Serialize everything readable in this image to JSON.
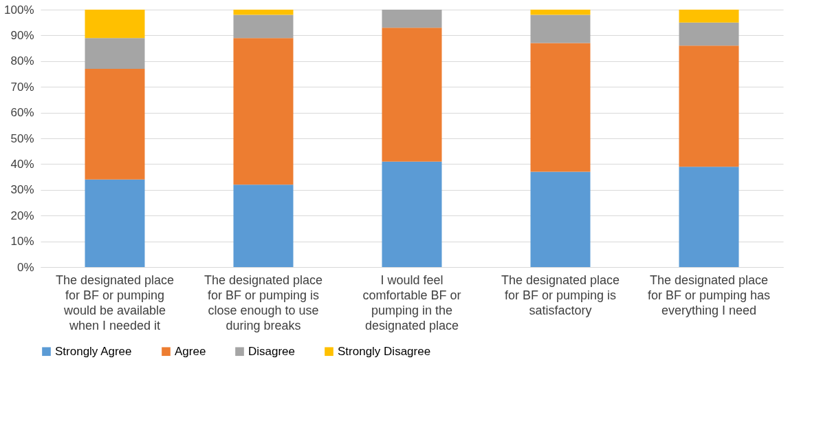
{
  "chart_data": {
    "type": "bar",
    "stacked": true,
    "categories": [
      "The designated place for BF or pumping would be available when I needed it",
      "The designated place for BF or pumping is close enough to use during breaks",
      "I would feel comfortable BF or pumping in the designated place",
      "The designated place for BF or pumping is satisfactory",
      "The designated place for BF or pumping has everything I need"
    ],
    "series": [
      {
        "name": "Strongly Agree",
        "color": "#5b9bd5",
        "values": [
          34,
          32,
          41,
          37,
          39
        ]
      },
      {
        "name": "Agree",
        "color": "#ed7d31",
        "values": [
          43,
          57,
          52,
          50,
          47
        ]
      },
      {
        "name": "Disagree",
        "color": "#a5a5a5",
        "values": [
          12,
          9,
          7,
          11,
          9
        ]
      },
      {
        "name": "Strongly Disagree",
        "color": "#ffc000",
        "values": [
          11,
          2,
          0,
          2,
          5
        ]
      }
    ],
    "ylim": [
      0,
      100
    ],
    "yticks": [
      {
        "value": 0,
        "label": "0%"
      },
      {
        "value": 10,
        "label": "10%"
      },
      {
        "value": 20,
        "label": "20%"
      },
      {
        "value": 30,
        "label": "30%"
      },
      {
        "value": 40,
        "label": "40%"
      },
      {
        "value": 50,
        "label": "50%"
      },
      {
        "value": 60,
        "label": "60%"
      },
      {
        "value": 70,
        "label": "70%"
      },
      {
        "value": 80,
        "label": "80%"
      },
      {
        "value": 90,
        "label": "90%"
      },
      {
        "value": 100,
        "label": "100%"
      }
    ],
    "grid": "y",
    "legend": "bottom"
  }
}
